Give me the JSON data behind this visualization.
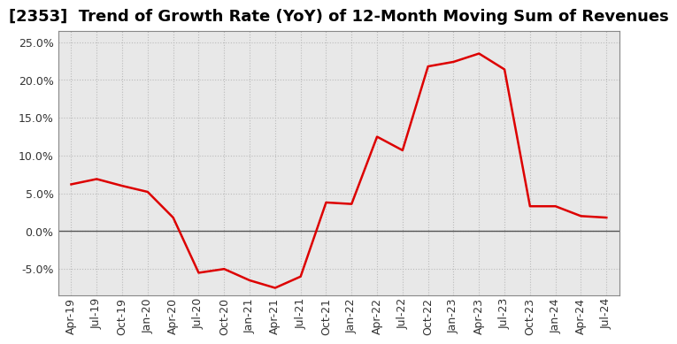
{
  "title": "[2353]  Trend of Growth Rate (YoY) of 12-Month Moving Sum of Revenues",
  "line_color": "#dd0000",
  "background_color": "#ffffff",
  "plot_bg_color": "#e8e8e8",
  "grid_color": "#bbbbbb",
  "ylim": [
    -0.085,
    0.265
  ],
  "yticks": [
    -0.05,
    0.0,
    0.05,
    0.1,
    0.15,
    0.2,
    0.25
  ],
  "dates": [
    "Apr-19",
    "Jul-19",
    "Oct-19",
    "Jan-20",
    "Apr-20",
    "Jul-20",
    "Oct-20",
    "Jan-21",
    "Apr-21",
    "Jul-21",
    "Oct-21",
    "Jan-22",
    "Apr-22",
    "Jul-22",
    "Oct-22",
    "Jan-23",
    "Apr-23",
    "Jul-23",
    "Oct-23",
    "Jan-24",
    "Apr-24",
    "Jul-24"
  ],
  "values": [
    0.062,
    0.069,
    0.06,
    0.052,
    0.018,
    -0.055,
    -0.05,
    -0.065,
    -0.075,
    -0.06,
    0.038,
    0.036,
    0.125,
    0.107,
    0.218,
    0.224,
    0.235,
    0.214,
    0.033,
    0.033,
    0.02,
    0.018
  ],
  "title_fontsize": 13,
  "tick_fontsize": 9,
  "line_width": 1.8
}
